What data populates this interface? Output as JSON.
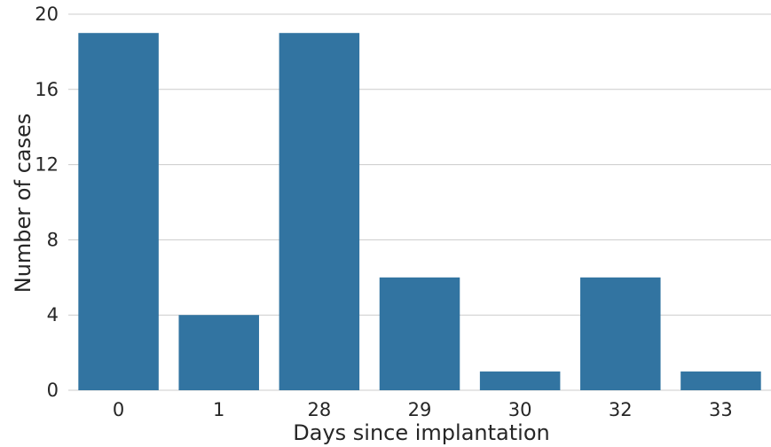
{
  "chart_data": {
    "type": "bar",
    "title": "",
    "xlabel": "Days since implantation",
    "ylabel": "Number of cases",
    "categories": [
      "0",
      "1",
      "28",
      "29",
      "30",
      "32",
      "33"
    ],
    "values": [
      19,
      4,
      19,
      6,
      1,
      6,
      1
    ],
    "ylim": [
      0,
      20
    ],
    "yticks": [
      0,
      4,
      8,
      12,
      16,
      20
    ],
    "grid": true,
    "bar_color": "#3274a1",
    "grid_color": "#cccccc"
  }
}
